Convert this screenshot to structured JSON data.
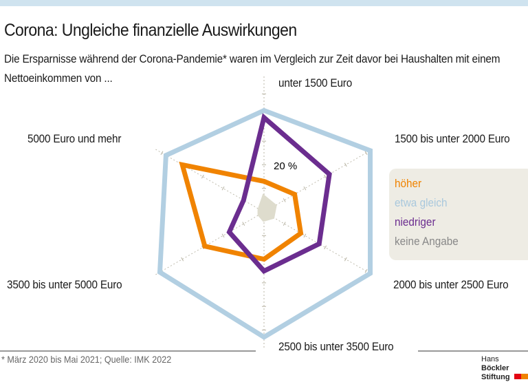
{
  "title": "Corona: Ungleiche finanzielle Auswirkungen",
  "subtitle": "Die Ersparnisse während der Corona-Pandemie* waren im Vergleich zur Zeit davor bei Haushalten mit einem Nettoeinkommen von ...",
  "footnote": "* März 2020 bis Mai 2021; Quelle: IMK 2022",
  "logo": {
    "line1a": "Hans",
    "line1b": "Böckler",
    "line2": "Stiftung"
  },
  "chart_data": {
    "type": "radar",
    "categories": [
      "unter 1500 Euro",
      "1500 bis unter 2000 Euro",
      "2000 bis unter 2500 Euro",
      "2500 bis unter 3500 Euro",
      "3500 bis unter 5000 Euro",
      "5000 Euro und mehr"
    ],
    "tick_label": "20 %",
    "tick_step": 10,
    "unit": "%",
    "series": [
      {
        "name": "höher",
        "color": "#f08300",
        "values": [
          13,
          15,
          18,
          20,
          29,
          40
        ]
      },
      {
        "name": "etwa gleich",
        "color": "#b2cfe2",
        "values": [
          43,
          52,
          52,
          53,
          51,
          48
        ]
      },
      {
        "name": "niedriger",
        "color": "#6b2d8f",
        "values": [
          40,
          32,
          27,
          25,
          17,
          10
        ]
      },
      {
        "name": "keine Angabe",
        "color": "#dedccd",
        "values": [
          6,
          5,
          4,
          3,
          2,
          2
        ]
      }
    ],
    "legend_text_colors": [
      "#f08300",
      "#a9c8dd",
      "#6b2d8f",
      "#888888"
    ]
  }
}
